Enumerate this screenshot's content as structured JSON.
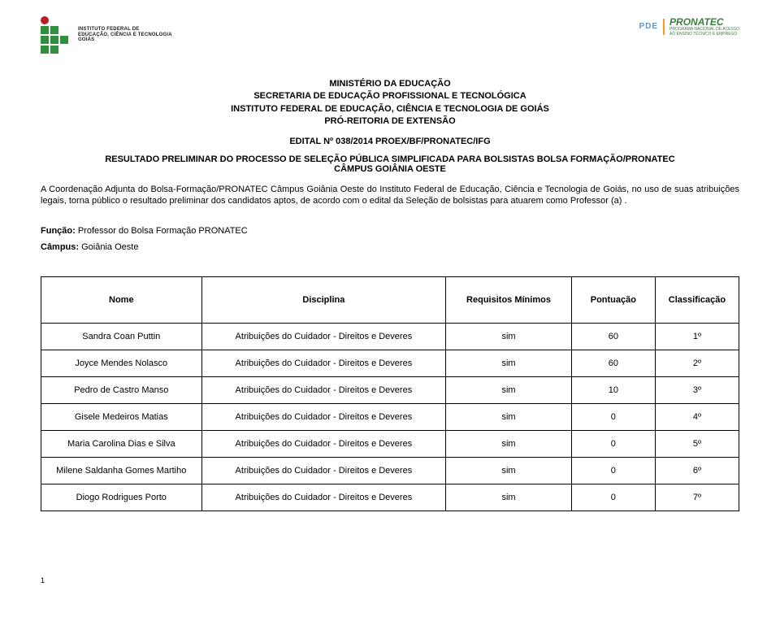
{
  "logos": {
    "left_text_line1": "INSTITUTO FEDERAL DE",
    "left_text_line2": "EDUCAÇÃO, CIÊNCIA E TECNOLOGIA",
    "left_text_line3": "GOIÁS",
    "pde_label": "PDE",
    "pronatec_label": "PRONATEC",
    "pronatec_sub1": "PROGRAMA NACIONAL DE ACESSO",
    "pronatec_sub2": "AO ENSINO TÉCNICO E EMPREGO"
  },
  "title": {
    "line1": "MINISTÉRIO DA EDUCAÇÃO",
    "line2": "SECRETARIA DE EDUCAÇÃO PROFISSIONAL E TECNOLÓGICA",
    "line3": "INSTITUTO FEDERAL DE EDUCAÇÃO, CIÊNCIA E TECNOLOGIA DE GOIÁS",
    "line4": "PRÓ-REITORIA DE EXTENSÃO"
  },
  "edital": "EDITAL Nº 038/2014 PROEX/BF/PRONATEC/IFG",
  "resultado": {
    "line1": "RESULTADO PRELIMINAR DO PROCESSO DE SELEÇÃO PÚBLICA SIMPLIFICADA PARA BOLSISTAS  BOLSA FORMAÇÃO/PRONATEC",
    "line2": "CÂMPUS GOIÂNIA OESTE"
  },
  "paragraph": "A Coordenação Adjunta do Bolsa-Formação/PRONATEC Câmpus Goiânia Oeste do Instituto Federal de Educação, Ciência e Tecnologia de Goiás, no uso de suas atribuições legais, torna público o resultado preliminar dos candidatos aptos, de acordo com o edital  da Seleção de bolsistas para atuarem como Professor (a) .",
  "funcao": {
    "label": "Função: ",
    "value": "Professor do Bolsa Formação PRONATEC",
    "campus_label": "Câmpus: ",
    "campus_value": "Goiânia Oeste"
  },
  "table": {
    "headers": {
      "nome": "Nome",
      "disciplina": "Disciplina",
      "requisitos": "Requisitos Mínimos",
      "pontuacao": "Pontuação",
      "classificacao": "Classificação"
    },
    "rows": [
      {
        "nome": "Sandra Coan Puttin",
        "disciplina": "Atribuições do Cuidador - Direitos e Deveres",
        "req": "sim",
        "pont": "60",
        "class": "1º"
      },
      {
        "nome": "Joyce Mendes Nolasco",
        "disciplina": "Atribuições do Cuidador - Direitos e Deveres",
        "req": "sim",
        "pont": "60",
        "class": "2º"
      },
      {
        "nome": "Pedro de Castro Manso",
        "disciplina": "Atribuições do Cuidador - Direitos e Deveres",
        "req": "sim",
        "pont": "10",
        "class": "3º"
      },
      {
        "nome": "Gisele Medeiros Matias",
        "disciplina": "Atribuições do Cuidador - Direitos e Deveres",
        "req": "sim",
        "pont": "0",
        "class": "4º"
      },
      {
        "nome": "Maria Carolina Dias e Silva",
        "disciplina": "Atribuições do Cuidador - Direitos e Deveres",
        "req": "sim",
        "pont": "0",
        "class": "5º"
      },
      {
        "nome": "Milene Saldanha Gomes Martiho",
        "disciplina": "Atribuições do Cuidador - Direitos e Deveres",
        "req": "sim",
        "pont": "0",
        "class": "6º"
      },
      {
        "nome": "Diogo Rodrigues Porto",
        "disciplina": "Atribuições do Cuidador - Direitos e Deveres",
        "req": "sim",
        "pont": "0",
        "class": "7º"
      }
    ]
  },
  "page_number": "1",
  "colors": {
    "ifg_red": "#b61f27",
    "ifg_green": "#2f8f3a",
    "pde_blue": "#5e94c7",
    "pde_orange": "#f59e1b",
    "pronatec_green": "#3a7f3e"
  }
}
